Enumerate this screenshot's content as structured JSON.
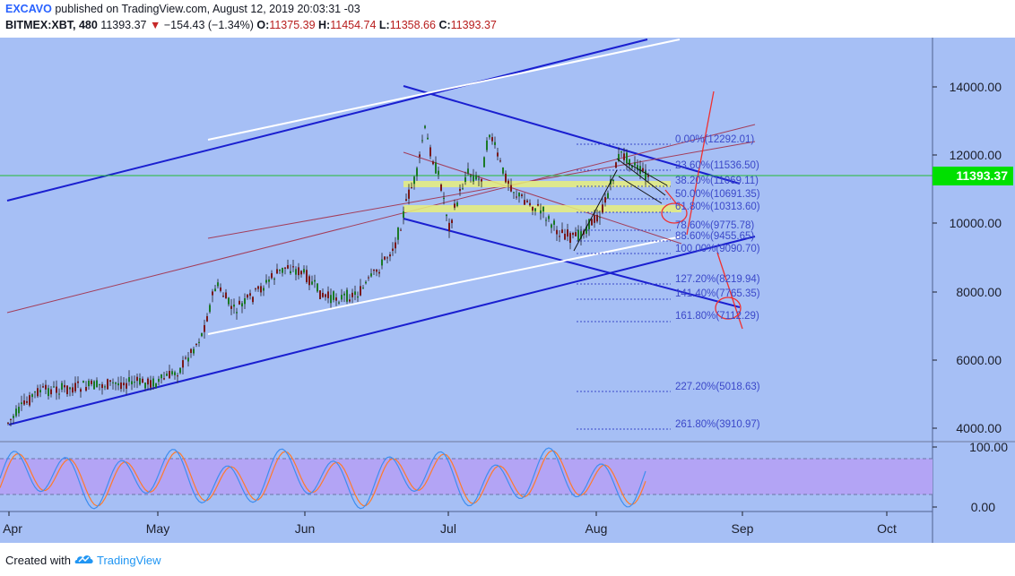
{
  "header": {
    "author": "EXCAVO",
    "published": "published on TradingView.com, August 12, 2019 20:03:31 -03",
    "symbol": "BITMEX:XBT, 480",
    "last": "11393.37",
    "change_arrow": "▼",
    "change": "−154.43 (−1.34%)",
    "o_label": "O:",
    "o": "11375.39",
    "h_label": "H:",
    "h": "11454.74",
    "l_label": "L:",
    "l": "11358.66",
    "c_label": "C:",
    "c": "11393.37"
  },
  "price_axis": {
    "ticks": [
      "14000.00",
      "12000.00",
      "10000.00",
      "8000.00",
      "6000.00",
      "4000.00"
    ],
    "current_price_label": "11393.37"
  },
  "oscillator_axis": {
    "ticks": [
      "100.00",
      "0.00"
    ]
  },
  "time_axis": {
    "ticks": [
      "Apr",
      "May",
      "Jun",
      "Jul",
      "Aug",
      "Sep",
      "Oct"
    ]
  },
  "fib_levels": [
    "0.00%(12292.01)",
    "23.60%(11536.50)",
    "38.20%(11069.11)",
    "50.00%(10691.35)",
    "61.80%(10313.60)",
    "78.60%(9775.78)",
    "88.60%(9455.65)",
    "100.00%(9090.70)",
    "127.20%(8219.94)",
    "141.40%(7765.35)",
    "161.80%(7112.29)",
    "227.20%(5018.63)",
    "261.80%(3910.97)"
  ],
  "footer": {
    "created_with": "Created with",
    "brand": "TradingView"
  },
  "colors": {
    "chart_bg": "#a6bff5",
    "axis_bg": "#a6bff5",
    "channel_blue": "#1a1fd0",
    "channel_white": "#ffffff",
    "fib_blue": "#3b48c9",
    "up_candle": "#1b7a26",
    "down_candle": "#7a1818",
    "price_line": "#22bb33",
    "price_label_bg": "#00e000",
    "oscillator_band": "#b3a4f5",
    "stoch_k": "#3d8ef0",
    "stoch_d": "#ff7a2a",
    "annotation_red": "#f03030",
    "yellow_zone": "#e7ef7a"
  }
}
